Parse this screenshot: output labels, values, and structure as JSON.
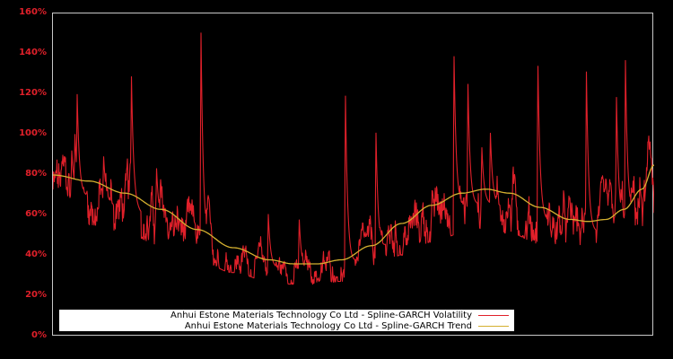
{
  "chart_data": {
    "type": "line",
    "title": "",
    "xlabel": "",
    "ylabel": "",
    "ylim": [
      0,
      160
    ],
    "yticks": [
      "0%",
      "20%",
      "40%",
      "60%",
      "80%",
      "100%",
      "120%",
      "140%",
      "160%"
    ],
    "ytick_values": [
      0,
      20,
      40,
      60,
      80,
      100,
      120,
      140,
      160
    ],
    "grid": false,
    "legend_position": "lower center",
    "background": "#000000",
    "series": [
      {
        "name": "Anhui Estone Materials Technology Co Ltd - Spline-GARCH Volatility",
        "color": "#e0202a",
        "description": "Daily spline-GARCH conditional volatility (% annualized), noisy series oscillating around the trend with sharp spikes",
        "spikes": [
          {
            "x_frac": 0.031,
            "value": 94
          },
          {
            "x_frac": 0.036,
            "value": 105
          },
          {
            "x_frac": 0.04,
            "value": 124
          },
          {
            "x_frac": 0.084,
            "value": 91
          },
          {
            "x_frac": 0.13,
            "value": 140
          },
          {
            "x_frac": 0.172,
            "value": 86
          },
          {
            "x_frac": 0.246,
            "value": 158
          },
          {
            "x_frac": 0.358,
            "value": 62
          },
          {
            "x_frac": 0.409,
            "value": 63
          },
          {
            "x_frac": 0.486,
            "value": 133
          },
          {
            "x_frac": 0.537,
            "value": 106
          },
          {
            "x_frac": 0.667,
            "value": 142
          },
          {
            "x_frac": 0.69,
            "value": 130
          },
          {
            "x_frac": 0.713,
            "value": 97
          },
          {
            "x_frac": 0.727,
            "value": 107
          },
          {
            "x_frac": 0.806,
            "value": 150
          },
          {
            "x_frac": 0.887,
            "value": 138
          },
          {
            "x_frac": 0.937,
            "value": 124
          },
          {
            "x_frac": 0.952,
            "value": 142
          }
        ]
      },
      {
        "name": "Anhui Estone Materials Technology Co Ltd - Spline-GARCH Trend",
        "color": "#d4b030",
        "description": "Smooth spline trend of volatility",
        "points": [
          {
            "x_frac": 0.0,
            "value": 80
          },
          {
            "x_frac": 0.06,
            "value": 77
          },
          {
            "x_frac": 0.12,
            "value": 71
          },
          {
            "x_frac": 0.18,
            "value": 63
          },
          {
            "x_frac": 0.24,
            "value": 53
          },
          {
            "x_frac": 0.3,
            "value": 44
          },
          {
            "x_frac": 0.36,
            "value": 38
          },
          {
            "x_frac": 0.4,
            "value": 36
          },
          {
            "x_frac": 0.44,
            "value": 36
          },
          {
            "x_frac": 0.48,
            "value": 38
          },
          {
            "x_frac": 0.53,
            "value": 45
          },
          {
            "x_frac": 0.58,
            "value": 56
          },
          {
            "x_frac": 0.63,
            "value": 65
          },
          {
            "x_frac": 0.68,
            "value": 71
          },
          {
            "x_frac": 0.72,
            "value": 73
          },
          {
            "x_frac": 0.76,
            "value": 71
          },
          {
            "x_frac": 0.81,
            "value": 64
          },
          {
            "x_frac": 0.86,
            "value": 58
          },
          {
            "x_frac": 0.89,
            "value": 57
          },
          {
            "x_frac": 0.92,
            "value": 58
          },
          {
            "x_frac": 0.95,
            "value": 63
          },
          {
            "x_frac": 0.98,
            "value": 73
          },
          {
            "x_frac": 1.0,
            "value": 85
          }
        ]
      }
    ]
  },
  "legend": {
    "items": [
      {
        "label": "Anhui Estone Materials Technology Co Ltd - Spline-GARCH Volatility",
        "color": "#e0202a"
      },
      {
        "label": "Anhui Estone Materials Technology Co Ltd - Spline-GARCH Trend",
        "color": "#d4b030"
      }
    ]
  }
}
